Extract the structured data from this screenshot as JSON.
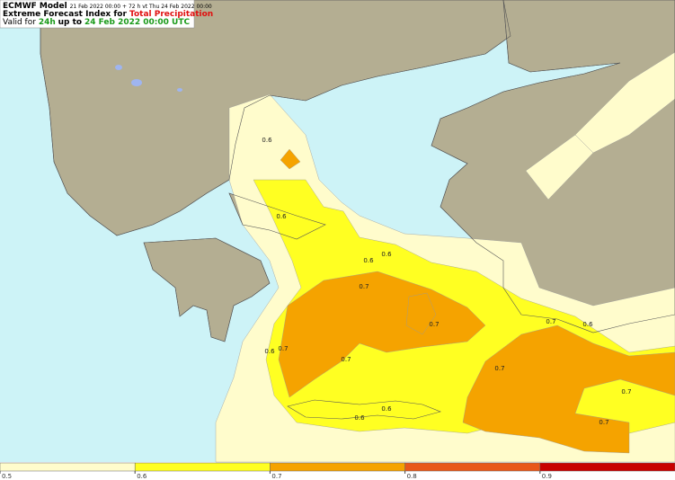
{
  "header": {
    "model": "ECMWF Model",
    "run": "21 Feb 2022 00:00 + 72 h vt Thu 24 Feb 2022 00:00",
    "title_prefix": "Extreme Forecast Index for",
    "title_param": "Total Precipitation",
    "valid_prefix": "Valid for",
    "valid_period": "24h",
    "valid_mid": "up to",
    "valid_time": "24 Feb 2022 00:00 UTC"
  },
  "contour_labels": [
    "0.6",
    "0.6",
    "0.6",
    "0.6",
    "0.7",
    "0.7",
    "0.7",
    "0.6",
    "0.7",
    "0.7",
    "0.7",
    "0.6",
    "0.7",
    "0.7",
    "0.6",
    "0.6"
  ],
  "colorbar": {
    "ticks": [
      0.5,
      0.6,
      0.7,
      0.8,
      0.9
    ],
    "colors": [
      "#fffccc",
      "#ffff22",
      "#f5a300",
      "#e8581a",
      "#c80000"
    ]
  }
}
